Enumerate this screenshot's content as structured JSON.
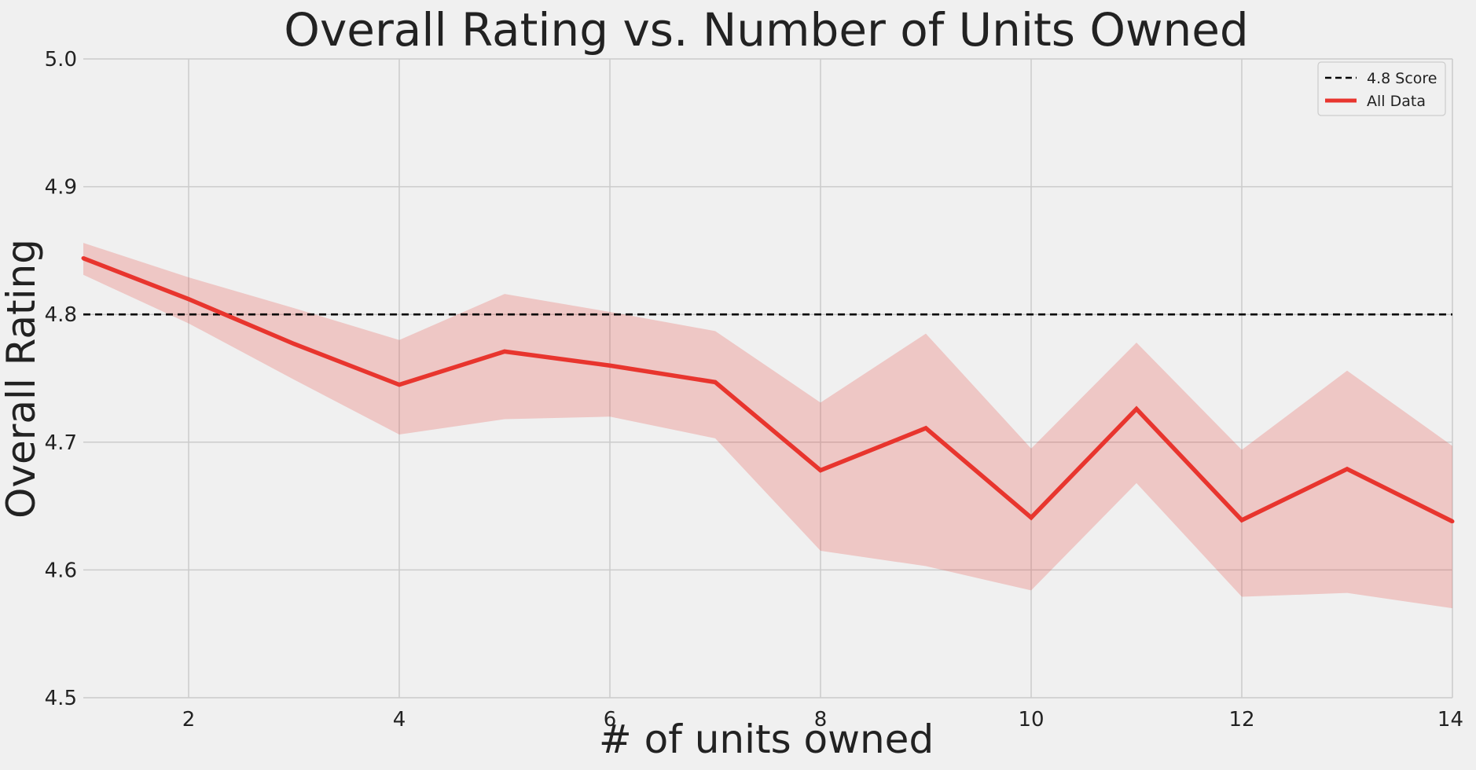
{
  "chart_data": {
    "type": "line",
    "title": "Overall Rating vs. Number of Units Owned",
    "xlabel": "# of units owned",
    "ylabel": "Overall Rating",
    "xlim": [
      1,
      14
    ],
    "ylim": [
      4.5,
      5.0
    ],
    "x_ticks": [
      "2",
      "4",
      "6",
      "8",
      "10",
      "12",
      "14"
    ],
    "y_ticks": [
      "4.5",
      "4.6",
      "4.7",
      "4.8",
      "4.9",
      "5.0"
    ],
    "grid": true,
    "legend_position": "top-right",
    "background_color": "#f0f0f0",
    "series": [
      {
        "name": "All Data",
        "color": "#e8352e",
        "x": [
          1,
          2,
          3,
          4,
          5,
          6,
          7,
          8,
          9,
          10,
          11,
          12,
          13,
          14
        ],
        "values": [
          4.844,
          4.812,
          4.777,
          4.745,
          4.771,
          4.76,
          4.747,
          4.678,
          4.711,
          4.641,
          4.726,
          4.639,
          4.679,
          4.638
        ],
        "ci_upper": [
          4.856,
          4.829,
          4.805,
          4.78,
          4.816,
          4.802,
          4.787,
          4.731,
          4.785,
          4.695,
          4.778,
          4.694,
          4.756,
          4.697
        ],
        "ci_lower": [
          4.831,
          4.793,
          4.749,
          4.706,
          4.718,
          4.72,
          4.703,
          4.615,
          4.603,
          4.584,
          4.668,
          4.579,
          4.582,
          4.57
        ]
      }
    ],
    "reference_line": {
      "name": "4.8 Score",
      "y": 4.8,
      "style": "dashed",
      "color": "#000000"
    }
  }
}
